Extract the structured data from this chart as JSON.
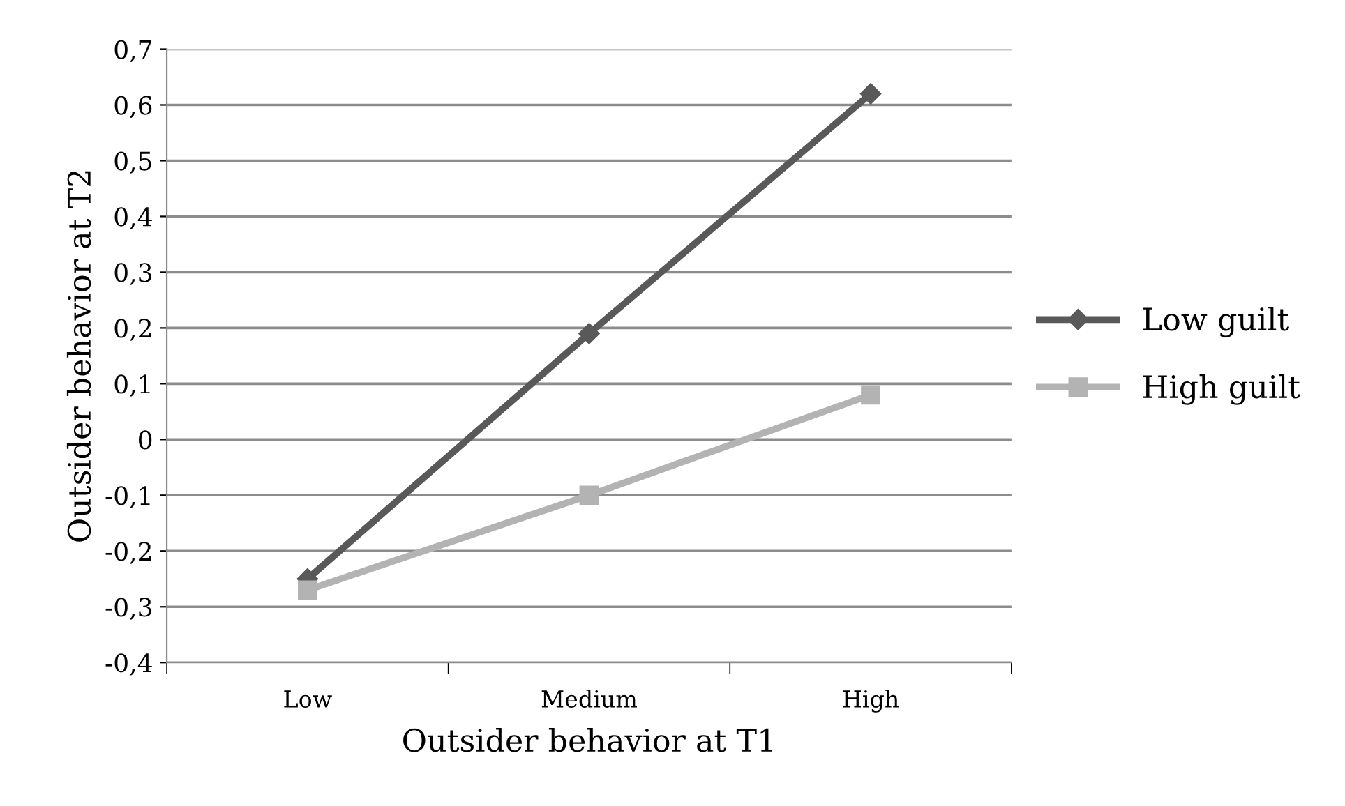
{
  "chart_data": {
    "type": "line",
    "xlabel": "Outsider behavior at T1",
    "ylabel": "Outsider behavior at T2",
    "categories": [
      "Low",
      "Medium",
      "High"
    ],
    "series": [
      {
        "name": "Low guilt",
        "color": "#595959",
        "values": [
          -0.25,
          0.19,
          0.62
        ],
        "marker": "diamond"
      },
      {
        "name": "High guilt",
        "color": "#b3b3b3",
        "values": [
          -0.27,
          -0.1,
          0.08
        ],
        "marker": "square"
      }
    ],
    "ylim": [
      -0.4,
      0.7
    ],
    "yticks": [
      {
        "value": -0.4,
        "label": "-0,4"
      },
      {
        "value": -0.3,
        "label": "-0,3"
      },
      {
        "value": -0.2,
        "label": "-0,2"
      },
      {
        "value": -0.1,
        "label": "-0,1"
      },
      0,
      {
        "value": 0.1,
        "label": "0,1"
      },
      {
        "value": 0.2,
        "label": "0,2"
      },
      {
        "value": 0.3,
        "label": "0,3"
      },
      {
        "value": 0.4,
        "label": "0,4"
      },
      {
        "value": 0.5,
        "label": "0,5"
      },
      {
        "value": 0.6,
        "label": "0,6"
      },
      {
        "value": 0.7,
        "label": "0,7"
      }
    ],
    "grid": "y",
    "legend": "right",
    "line_style": "solid"
  }
}
